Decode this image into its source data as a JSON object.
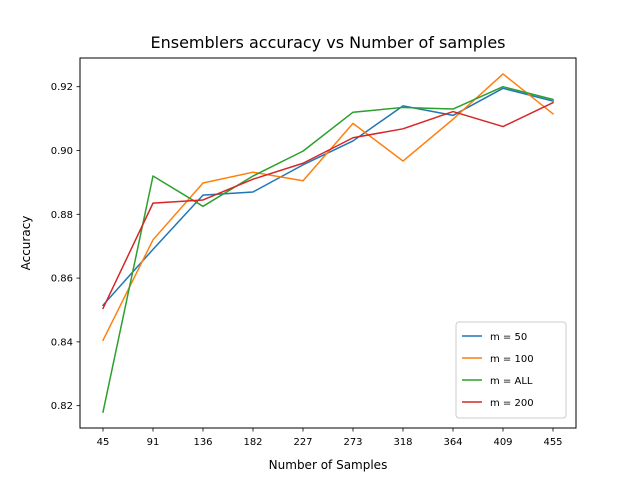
{
  "chart_data": {
    "type": "line",
    "title": "Ensemblers accuracy vs Number of samples",
    "xlabel": "Number of Samples",
    "ylabel": "Accuracy",
    "categories": [
      "45",
      "91",
      "136",
      "182",
      "227",
      "273",
      "318",
      "364",
      "409",
      "455"
    ],
    "ylim": [
      0.813,
      0.929
    ],
    "yticks": [
      "0.82",
      "0.84",
      "0.86",
      "0.88",
      "0.90",
      "0.92"
    ],
    "grid": false,
    "legend_position": "lower-right",
    "series": [
      {
        "name": "m = 50",
        "color": "#1f77b4",
        "values": [
          0.8515,
          0.869,
          0.886,
          0.887,
          0.8955,
          0.903,
          0.914,
          0.911,
          0.9195,
          0.9155
        ]
      },
      {
        "name": "m = 100",
        "color": "#ff7f0e",
        "values": [
          0.8405,
          0.872,
          0.8898,
          0.8932,
          0.8905,
          0.9085,
          0.8967,
          0.9098,
          0.924,
          0.9115
        ]
      },
      {
        "name": "m = ALL",
        "color": "#2ca02c",
        "values": [
          0.818,
          0.892,
          0.8825,
          0.892,
          0.8998,
          0.912,
          0.9135,
          0.913,
          0.92,
          0.916
        ]
      },
      {
        "name": "m = 200",
        "color": "#d62728",
        "values": [
          0.8505,
          0.8835,
          0.8845,
          0.891,
          0.896,
          0.904,
          0.9068,
          0.9122,
          0.9075,
          0.915
        ]
      }
    ]
  }
}
